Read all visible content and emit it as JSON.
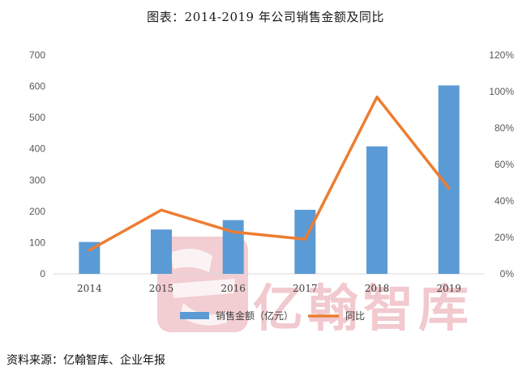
{
  "title": "图表：2014-2019 年公司销售金额及同比",
  "source": "资料来源：亿翰智库、企业年报",
  "watermark": "亿翰智库",
  "colors": {
    "bar": "#5B9BD5",
    "line": "#ED7D31",
    "watermark": "#E8A6AE"
  },
  "chart_data": {
    "type": "bar+line",
    "categories": [
      "2014",
      "2015",
      "2016",
      "2017",
      "2018",
      "2019"
    ],
    "series": [
      {
        "name": "销售金额（亿元）",
        "type": "bar",
        "axis": "left",
        "values": [
          102,
          142,
          172,
          205,
          408,
          603
        ]
      },
      {
        "name": "同比",
        "type": "line",
        "axis": "right",
        "values": [
          13,
          35,
          23,
          19,
          97,
          47
        ]
      }
    ],
    "y_left": {
      "lim": [
        0,
        700
      ],
      "ticks": [
        "0",
        "100",
        "200",
        "300",
        "400",
        "500",
        "600",
        "700"
      ]
    },
    "y_right": {
      "lim": [
        0,
        120
      ],
      "ticks": [
        "0%",
        "20%",
        "40%",
        "60%",
        "80%",
        "100%",
        "120%"
      ]
    },
    "legend": "bottom",
    "grid": false
  }
}
